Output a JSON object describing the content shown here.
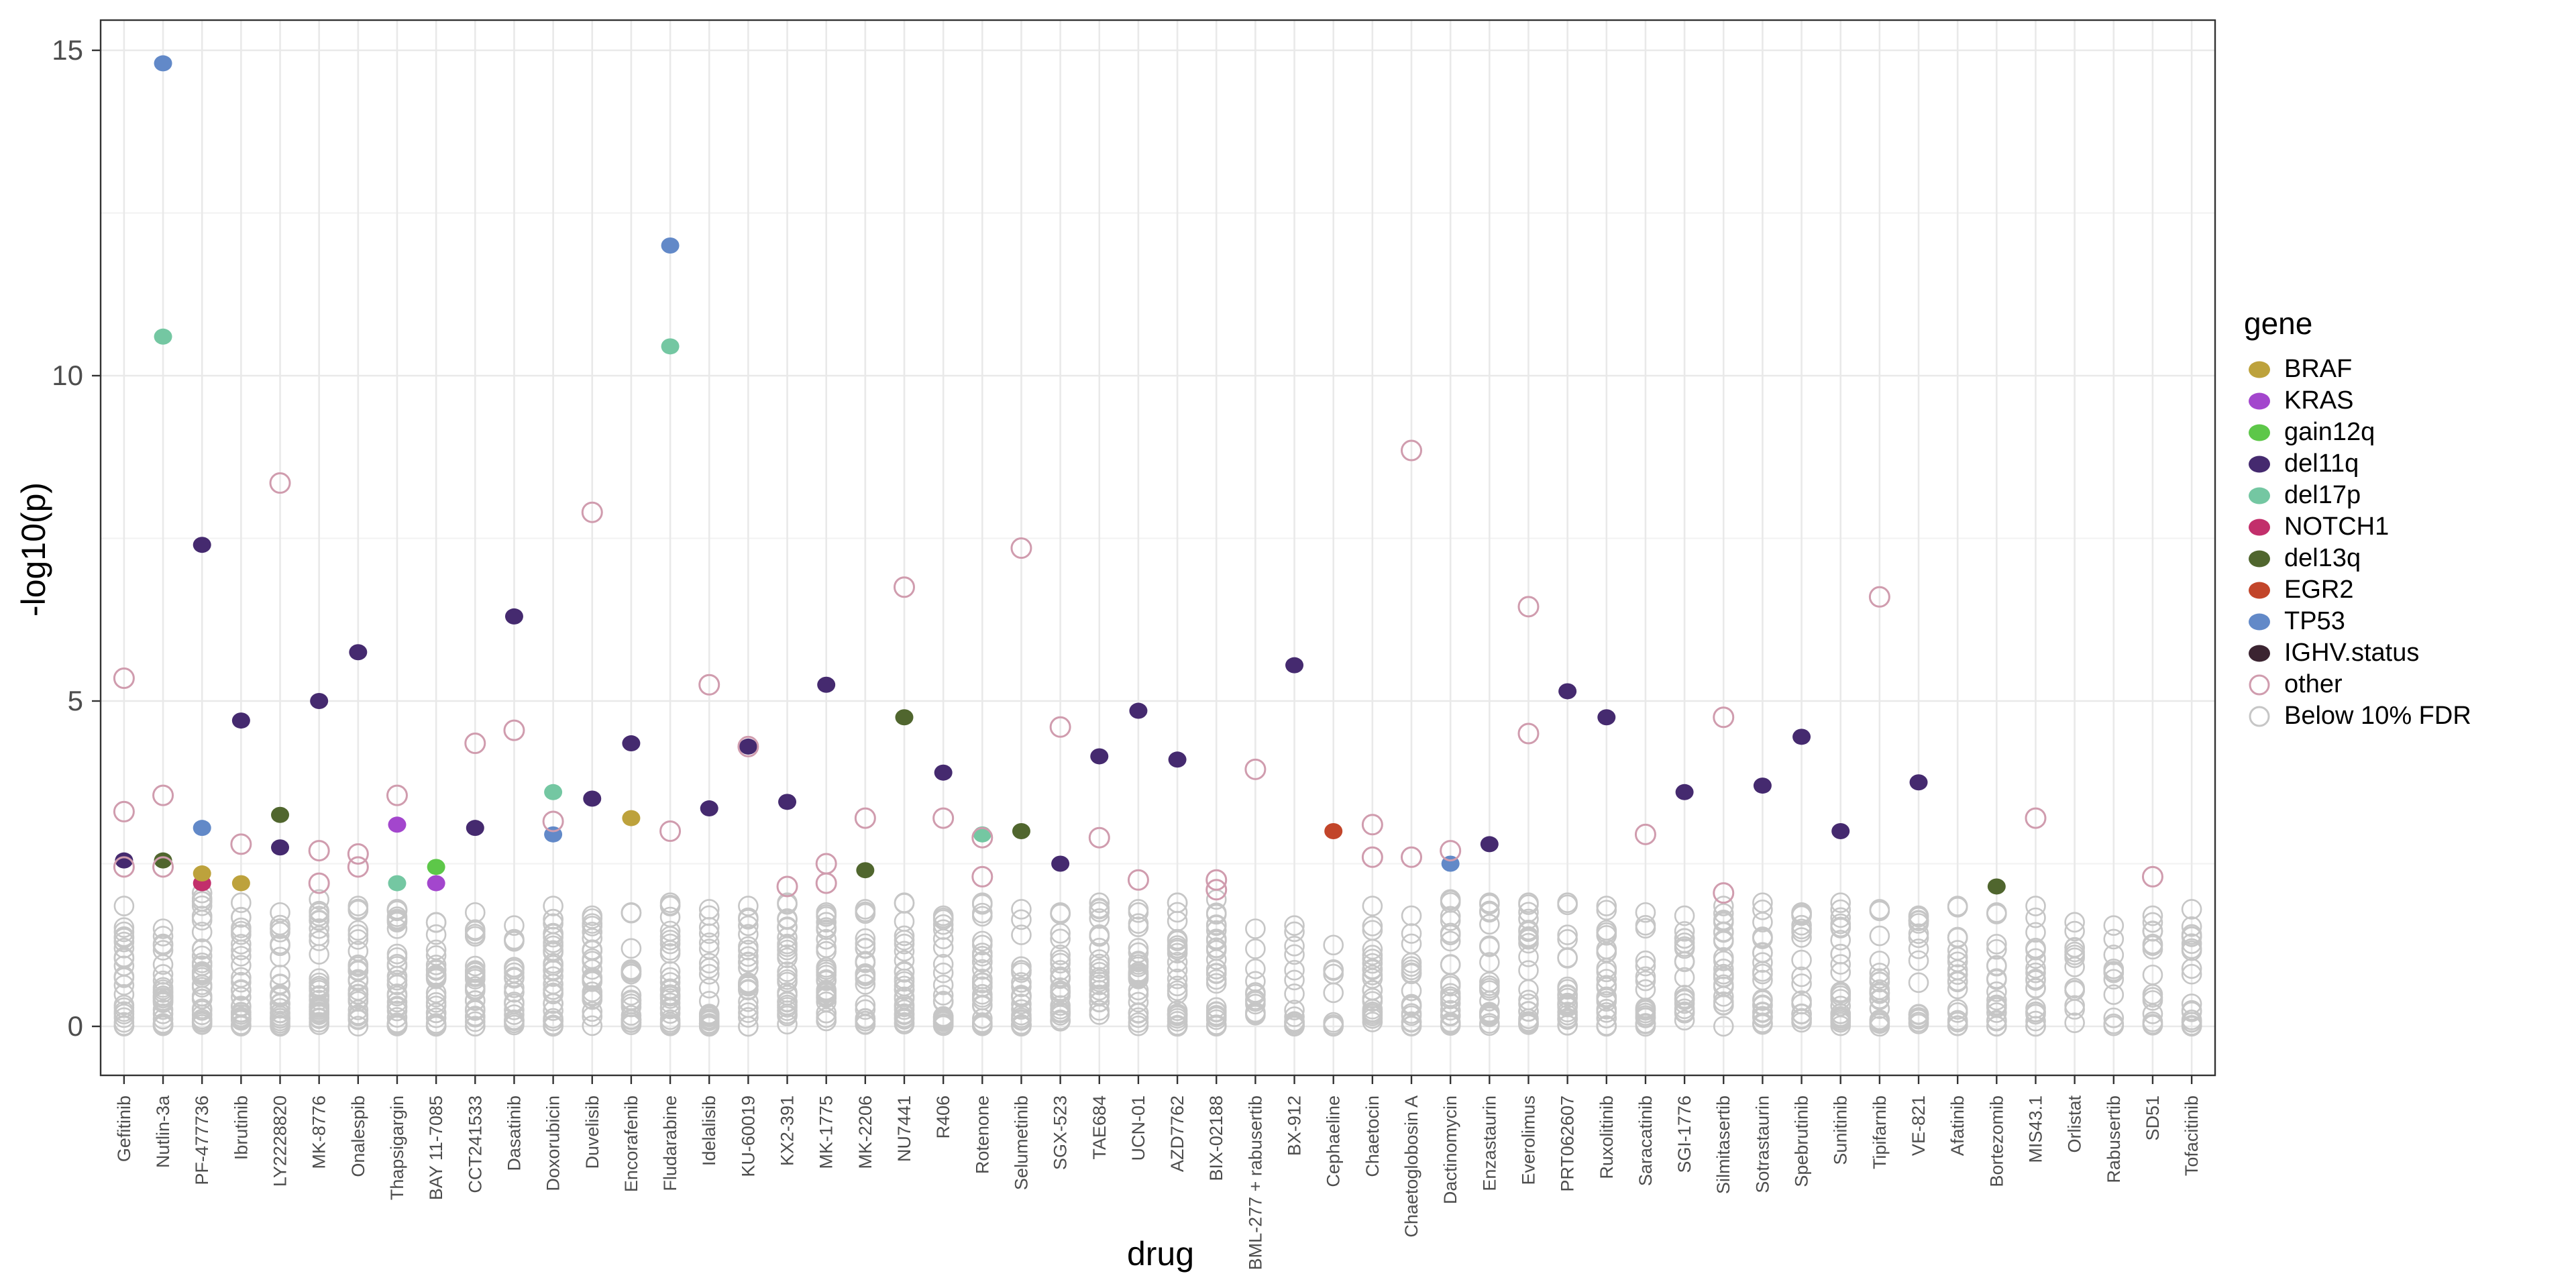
{
  "figure": {
    "x_axis_title": "drug",
    "y_axis_title": "-log10(p)"
  },
  "legend": {
    "title": "gene",
    "items": [
      {
        "label": "BRAF",
        "gene": "BRAF",
        "filled": true
      },
      {
        "label": "KRAS",
        "gene": "KRAS",
        "filled": true
      },
      {
        "label": "gain12q",
        "gene": "gain12q",
        "filled": true
      },
      {
        "label": "del11q",
        "gene": "del11q",
        "filled": true
      },
      {
        "label": "del17p",
        "gene": "del17p",
        "filled": true
      },
      {
        "label": "NOTCH1",
        "gene": "NOTCH1",
        "filled": true
      },
      {
        "label": "del13q",
        "gene": "del13q",
        "filled": true
      },
      {
        "label": "EGR2",
        "gene": "EGR2",
        "filled": true
      },
      {
        "label": "TP53",
        "gene": "TP53",
        "filled": true
      },
      {
        "label": "IGHV.status",
        "gene": "IGHV.status",
        "filled": true
      },
      {
        "label": "other",
        "gene": "other",
        "filled": false
      },
      {
        "label": "Below 10% FDR",
        "gene": "fdr",
        "filled": false
      }
    ]
  },
  "chart_data": {
    "type": "scatter",
    "title": "",
    "xlabel": "drug",
    "ylabel": "-log10(p)",
    "ylim": [
      0,
      15
    ],
    "yticks": [
      0,
      5,
      10,
      15
    ],
    "grid": true,
    "legend_position": "right",
    "gene_colors": {
      "BRAF": "#bda23c",
      "KRAS": "#a346cd",
      "gain12q": "#5dc749",
      "del11q": "#452a6f",
      "del17p": "#74c7a2",
      "NOTCH1": "#c22f6b",
      "del13q": "#50662e",
      "EGR2": "#c2452a",
      "TP53": "#6289c8",
      "IGHV.status": "#3b2431",
      "other": "#d09cae",
      "fdr": "#c6c6c6"
    },
    "drugs": [
      {
        "name": "Gefitinib",
        "points": [
          {
            "gene": "other",
            "v": 5.35
          },
          {
            "gene": "other",
            "v": 3.3
          },
          {
            "gene": "other",
            "v": 2.45
          },
          {
            "gene": "del11q",
            "v": 2.55
          }
        ],
        "fdr": {
          "count": 22,
          "max": 1.85
        }
      },
      {
        "name": "Nutlin-3a",
        "points": [
          {
            "gene": "TP53",
            "v": 14.8
          },
          {
            "gene": "del17p",
            "v": 10.6
          },
          {
            "gene": "other",
            "v": 3.55
          },
          {
            "gene": "other",
            "v": 2.45
          },
          {
            "gene": "del13q",
            "v": 2.55
          }
        ],
        "fdr": {
          "count": 26,
          "max": 1.5
        }
      },
      {
        "name": "PF-477736",
        "points": [
          {
            "gene": "del11q",
            "v": 7.4
          },
          {
            "gene": "TP53",
            "v": 3.05
          },
          {
            "gene": "BRAF",
            "v": 2.35
          },
          {
            "gene": "NOTCH1",
            "v": 2.2
          }
        ],
        "fdr": {
          "count": 34,
          "max": 2.05
        }
      },
      {
        "name": "Ibrutinib",
        "points": [
          {
            "gene": "del11q",
            "v": 4.7
          },
          {
            "gene": "other",
            "v": 2.8
          },
          {
            "gene": "BRAF",
            "v": 2.2
          }
        ],
        "fdr": {
          "count": 28,
          "max": 1.9
        }
      },
      {
        "name": "LY2228820",
        "points": [
          {
            "gene": "other",
            "v": 8.35
          },
          {
            "gene": "del13q",
            "v": 3.25
          },
          {
            "gene": "del11q",
            "v": 2.75
          }
        ],
        "fdr": {
          "count": 30,
          "max": 1.75
        }
      },
      {
        "name": "MK-8776",
        "points": [
          {
            "gene": "del11q",
            "v": 5.0
          },
          {
            "gene": "other",
            "v": 2.7
          },
          {
            "gene": "other",
            "v": 2.2
          }
        ],
        "fdr": {
          "count": 30,
          "max": 1.95
        }
      },
      {
        "name": "Onalespib",
        "points": [
          {
            "gene": "del11q",
            "v": 5.75
          },
          {
            "gene": "other",
            "v": 2.65
          },
          {
            "gene": "other",
            "v": 2.45
          }
        ],
        "fdr": {
          "count": 26,
          "max": 1.85
        }
      },
      {
        "name": "Thapsigargin",
        "points": [
          {
            "gene": "other",
            "v": 3.55
          },
          {
            "gene": "KRAS",
            "v": 3.1
          },
          {
            "gene": "del17p",
            "v": 2.2
          }
        ],
        "fdr": {
          "count": 30,
          "max": 1.8
        }
      },
      {
        "name": "BAY 11-7085",
        "points": [
          {
            "gene": "gain12q",
            "v": 2.45
          },
          {
            "gene": "KRAS",
            "v": 2.2
          }
        ],
        "fdr": {
          "count": 24,
          "max": 1.6
        }
      },
      {
        "name": "CCT241533",
        "points": [
          {
            "gene": "other",
            "v": 4.35
          },
          {
            "gene": "del11q",
            "v": 3.05
          }
        ],
        "fdr": {
          "count": 26,
          "max": 1.75
        }
      },
      {
        "name": "Dasatinib",
        "points": [
          {
            "gene": "del11q",
            "v": 6.3
          },
          {
            "gene": "other",
            "v": 4.55
          }
        ],
        "fdr": {
          "count": 22,
          "max": 1.55
        }
      },
      {
        "name": "Doxorubicin",
        "points": [
          {
            "gene": "del17p",
            "v": 3.6
          },
          {
            "gene": "other",
            "v": 3.15
          },
          {
            "gene": "TP53",
            "v": 2.95
          }
        ],
        "fdr": {
          "count": 28,
          "max": 1.85
        }
      },
      {
        "name": "Duvelisib",
        "points": [
          {
            "gene": "other",
            "v": 7.9
          },
          {
            "gene": "del11q",
            "v": 3.5
          }
        ],
        "fdr": {
          "count": 24,
          "max": 1.7
        }
      },
      {
        "name": "Encorafenib",
        "points": [
          {
            "gene": "del11q",
            "v": 4.35
          },
          {
            "gene": "BRAF",
            "v": 3.2
          }
        ],
        "fdr": {
          "count": 22,
          "max": 1.75
        }
      },
      {
        "name": "Fludarabine",
        "points": [
          {
            "gene": "TP53",
            "v": 12.0
          },
          {
            "gene": "del17p",
            "v": 10.45
          },
          {
            "gene": "other",
            "v": 3.0
          }
        ],
        "fdr": {
          "count": 26,
          "max": 1.9
        }
      },
      {
        "name": "Idelalisib",
        "points": [
          {
            "gene": "other",
            "v": 5.25
          },
          {
            "gene": "del11q",
            "v": 3.35
          }
        ],
        "fdr": {
          "count": 26,
          "max": 1.8
        }
      },
      {
        "name": "KU-60019",
        "points": [
          {
            "gene": "del11q",
            "v": 4.3
          },
          {
            "gene": "other",
            "v": 4.3
          }
        ],
        "fdr": {
          "count": 24,
          "max": 1.85
        }
      },
      {
        "name": "KX2-391",
        "points": [
          {
            "gene": "del11q",
            "v": 3.45
          },
          {
            "gene": "other",
            "v": 2.15
          }
        ],
        "fdr": {
          "count": 26,
          "max": 1.9
        }
      },
      {
        "name": "MK-1775",
        "points": [
          {
            "gene": "del11q",
            "v": 5.25
          },
          {
            "gene": "other",
            "v": 2.5
          },
          {
            "gene": "other",
            "v": 2.2
          }
        ],
        "fdr": {
          "count": 28,
          "max": 1.75
        }
      },
      {
        "name": "MK-2206",
        "points": [
          {
            "gene": "other",
            "v": 3.2
          },
          {
            "gene": "del13q",
            "v": 2.4
          }
        ],
        "fdr": {
          "count": 24,
          "max": 1.8
        }
      },
      {
        "name": "NU7441",
        "points": [
          {
            "gene": "other",
            "v": 6.75
          },
          {
            "gene": "del13q",
            "v": 4.75
          }
        ],
        "fdr": {
          "count": 26,
          "max": 1.9
        }
      },
      {
        "name": "R406",
        "points": [
          {
            "gene": "del11q",
            "v": 3.9
          },
          {
            "gene": "other",
            "v": 3.2
          }
        ],
        "fdr": {
          "count": 24,
          "max": 1.7
        }
      },
      {
        "name": "Rotenone",
        "points": [
          {
            "gene": "del17p",
            "v": 2.95
          },
          {
            "gene": "other",
            "v": 2.9
          },
          {
            "gene": "other",
            "v": 2.3
          }
        ],
        "fdr": {
          "count": 28,
          "max": 1.9
        }
      },
      {
        "name": "Selumetinib",
        "points": [
          {
            "gene": "other",
            "v": 7.35
          },
          {
            "gene": "del13q",
            "v": 3.0
          }
        ],
        "fdr": {
          "count": 24,
          "max": 1.8
        }
      },
      {
        "name": "SGX-523",
        "points": [
          {
            "gene": "other",
            "v": 4.6
          },
          {
            "gene": "del11q",
            "v": 2.5
          }
        ],
        "fdr": {
          "count": 26,
          "max": 1.75
        }
      },
      {
        "name": "TAE684",
        "points": [
          {
            "gene": "del11q",
            "v": 4.15
          },
          {
            "gene": "other",
            "v": 2.9
          }
        ],
        "fdr": {
          "count": 26,
          "max": 1.9
        }
      },
      {
        "name": "UCN-01",
        "points": [
          {
            "gene": "del11q",
            "v": 4.85
          },
          {
            "gene": "other",
            "v": 2.25
          }
        ],
        "fdr": {
          "count": 24,
          "max": 1.8
        }
      },
      {
        "name": "AZD7762",
        "points": [
          {
            "gene": "del11q",
            "v": 4.1
          }
        ],
        "fdr": {
          "count": 26,
          "max": 1.9
        }
      },
      {
        "name": "BIX-02188",
        "points": [
          {
            "gene": "other",
            "v": 2.25
          },
          {
            "gene": "other",
            "v": 2.1
          }
        ],
        "fdr": {
          "count": 28,
          "max": 1.95
        }
      },
      {
        "name": "BML-277 + rabusertib",
        "points": [
          {
            "gene": "other",
            "v": 3.95
          }
        ],
        "fdr": {
          "count": 12,
          "max": 1.5
        }
      },
      {
        "name": "BX-912",
        "points": [
          {
            "gene": "del11q",
            "v": 5.55
          }
        ],
        "fdr": {
          "count": 14,
          "max": 1.55
        }
      },
      {
        "name": "Cephaeline",
        "points": [
          {
            "gene": "EGR2",
            "v": 3.0
          }
        ],
        "fdr": {
          "count": 8,
          "max": 1.25
        }
      },
      {
        "name": "Chaetocin",
        "points": [
          {
            "gene": "other",
            "v": 3.1
          },
          {
            "gene": "other",
            "v": 2.6
          }
        ],
        "fdr": {
          "count": 22,
          "max": 1.85
        }
      },
      {
        "name": "Chaetoglobosin A",
        "points": [
          {
            "gene": "other",
            "v": 8.85
          },
          {
            "gene": "other",
            "v": 2.6
          }
        ],
        "fdr": {
          "count": 18,
          "max": 1.7
        }
      },
      {
        "name": "Dactinomycin",
        "points": [
          {
            "gene": "other",
            "v": 2.7
          },
          {
            "gene": "TP53",
            "v": 2.5
          }
        ],
        "fdr": {
          "count": 22,
          "max": 1.95
        }
      },
      {
        "name": "Enzastaurin",
        "points": [
          {
            "gene": "del11q",
            "v": 2.8
          }
        ],
        "fdr": {
          "count": 20,
          "max": 1.9
        }
      },
      {
        "name": "Everolimus",
        "points": [
          {
            "gene": "other",
            "v": 6.45
          },
          {
            "gene": "other",
            "v": 4.5
          }
        ],
        "fdr": {
          "count": 22,
          "max": 1.9
        }
      },
      {
        "name": "PRT062607",
        "points": [
          {
            "gene": "del11q",
            "v": 5.15
          }
        ],
        "fdr": {
          "count": 22,
          "max": 1.9
        }
      },
      {
        "name": "Ruxolitinib",
        "points": [
          {
            "gene": "del11q",
            "v": 4.75
          }
        ],
        "fdr": {
          "count": 22,
          "max": 1.85
        }
      },
      {
        "name": "Saracatinib",
        "points": [
          {
            "gene": "other",
            "v": 2.95
          }
        ],
        "fdr": {
          "count": 20,
          "max": 1.75
        }
      },
      {
        "name": "SGI-1776",
        "points": [
          {
            "gene": "del11q",
            "v": 3.6
          }
        ],
        "fdr": {
          "count": 18,
          "max": 1.7
        }
      },
      {
        "name": "Silmitasertib",
        "points": [
          {
            "gene": "other",
            "v": 4.75
          },
          {
            "gene": "other",
            "v": 2.05
          }
        ],
        "fdr": {
          "count": 22,
          "max": 1.85
        }
      },
      {
        "name": "Sotrastaurin",
        "points": [
          {
            "gene": "del11q",
            "v": 3.7
          }
        ],
        "fdr": {
          "count": 24,
          "max": 1.9
        }
      },
      {
        "name": "Spebrutinib",
        "points": [
          {
            "gene": "del11q",
            "v": 4.45
          }
        ],
        "fdr": {
          "count": 18,
          "max": 1.75
        }
      },
      {
        "name": "Sunitinib",
        "points": [
          {
            "gene": "del11q",
            "v": 3.0
          }
        ],
        "fdr": {
          "count": 24,
          "max": 1.9
        }
      },
      {
        "name": "Tipifarnib",
        "points": [
          {
            "gene": "other",
            "v": 6.6
          }
        ],
        "fdr": {
          "count": 20,
          "max": 1.8
        }
      },
      {
        "name": "VE-821",
        "points": [
          {
            "gene": "del11q",
            "v": 3.75
          }
        ],
        "fdr": {
          "count": 18,
          "max": 1.7
        }
      },
      {
        "name": "Afatinib",
        "points": [],
        "fdr": {
          "count": 20,
          "max": 1.85
        }
      },
      {
        "name": "Bortezomib",
        "points": [
          {
            "gene": "del13q",
            "v": 2.15
          }
        ],
        "fdr": {
          "count": 18,
          "max": 1.75
        }
      },
      {
        "name": "MIS43.1",
        "points": [
          {
            "gene": "other",
            "v": 3.2
          }
        ],
        "fdr": {
          "count": 20,
          "max": 1.85
        }
      },
      {
        "name": "Orlistat",
        "points": [],
        "fdr": {
          "count": 14,
          "max": 1.6
        }
      },
      {
        "name": "Rabusertib",
        "points": [],
        "fdr": {
          "count": 12,
          "max": 1.55
        }
      },
      {
        "name": "SD51",
        "points": [
          {
            "gene": "other",
            "v": 2.3
          }
        ],
        "fdr": {
          "count": 16,
          "max": 1.7
        }
      },
      {
        "name": "Tofacitinib",
        "points": [],
        "fdr": {
          "count": 18,
          "max": 1.8
        }
      }
    ]
  }
}
